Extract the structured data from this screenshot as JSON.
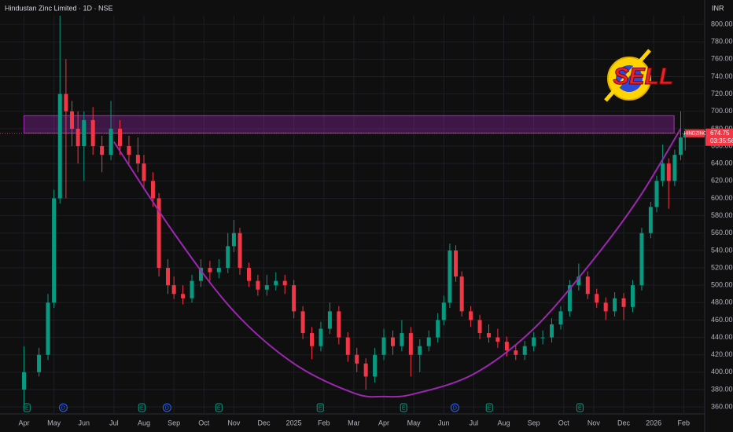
{
  "chart_data": {
    "type": "candlestick",
    "title": "Hindustan Zinc Limited · 1D · NSE",
    "currency": "INR",
    "symbol": "HINDZINC",
    "last_price": 674.75,
    "last_price_label": "674.75",
    "countdown": "03:35:56",
    "badge": "SELL",
    "up_color": "#089981",
    "down_color": "#f23645",
    "ylim": [
      352,
      810
    ],
    "yticks": [
      {
        "value": 360,
        "label": "360.00"
      },
      {
        "value": 380,
        "label": "380.00"
      },
      {
        "value": 400,
        "label": "400.00"
      },
      {
        "value": 420,
        "label": "420.00"
      },
      {
        "value": 440,
        "label": "440.00"
      },
      {
        "value": 460,
        "label": "460.00"
      },
      {
        "value": 480,
        "label": "480.00"
      },
      {
        "value": 500,
        "label": "500.00"
      },
      {
        "value": 520,
        "label": "520.00"
      },
      {
        "value": 540,
        "label": "540.00"
      },
      {
        "value": 560,
        "label": "560.00"
      },
      {
        "value": 580,
        "label": "580.00"
      },
      {
        "value": 600,
        "label": "600.00"
      },
      {
        "value": 620,
        "label": "620.00"
      },
      {
        "value": 640,
        "label": "640.00"
      },
      {
        "value": 660,
        "label": "660.00"
      },
      {
        "value": 680,
        "label": "680.00"
      },
      {
        "value": 700,
        "label": "700.00"
      },
      {
        "value": 720,
        "label": "720.00"
      },
      {
        "value": 740,
        "label": "740.00"
      },
      {
        "value": 760,
        "label": "760.00"
      },
      {
        "value": 780,
        "label": "780.00"
      },
      {
        "value": 800,
        "label": "800.00"
      }
    ],
    "xlim": [
      -0.8,
      22.7
    ],
    "xticks": [
      {
        "value": 0,
        "label": "Apr"
      },
      {
        "value": 1,
        "label": "May"
      },
      {
        "value": 2,
        "label": "Jun"
      },
      {
        "value": 3,
        "label": "Jul"
      },
      {
        "value": 4,
        "label": "Aug"
      },
      {
        "value": 5,
        "label": "Sep"
      },
      {
        "value": 6,
        "label": "Oct"
      },
      {
        "value": 7,
        "label": "Nov"
      },
      {
        "value": 8,
        "label": "Dec"
      },
      {
        "value": 9,
        "label": "2025"
      },
      {
        "value": 10,
        "label": "Feb"
      },
      {
        "value": 11,
        "label": "Mar"
      },
      {
        "value": 12,
        "label": "Apr"
      },
      {
        "value": 13,
        "label": "May"
      },
      {
        "value": 14,
        "label": "Jun"
      },
      {
        "value": 15,
        "label": "Jul"
      },
      {
        "value": 16,
        "label": "Aug"
      },
      {
        "value": 17,
        "label": "Sep"
      },
      {
        "value": 18,
        "label": "Oct"
      },
      {
        "value": 19,
        "label": "Nov"
      },
      {
        "value": 20,
        "label": "Dec"
      },
      {
        "value": 21,
        "label": "2026"
      },
      {
        "value": 22,
        "label": "Feb"
      }
    ],
    "candles": [
      {
        "x": 0,
        "open": 380,
        "high": 430,
        "low": 358,
        "close": 400
      },
      {
        "x": 0.5,
        "open": 400,
        "high": 428,
        "low": 395,
        "close": 420
      },
      {
        "x": 0.8,
        "open": 420,
        "high": 490,
        "low": 414,
        "close": 480
      },
      {
        "x": 1.0,
        "open": 480,
        "high": 610,
        "low": 474,
        "close": 600
      },
      {
        "x": 1.2,
        "open": 600,
        "high": 810,
        "low": 594,
        "close": 720
      },
      {
        "x": 1.4,
        "open": 720,
        "high": 760,
        "low": 600,
        "close": 700
      },
      {
        "x": 1.6,
        "open": 700,
        "high": 712,
        "low": 660,
        "close": 680
      },
      {
        "x": 1.8,
        "open": 680,
        "high": 700,
        "low": 640,
        "close": 660
      },
      {
        "x": 2.0,
        "open": 660,
        "high": 700,
        "low": 620,
        "close": 690
      },
      {
        "x": 2.3,
        "open": 690,
        "high": 705,
        "low": 650,
        "close": 660
      },
      {
        "x": 2.6,
        "open": 660,
        "high": 672,
        "low": 630,
        "close": 650
      },
      {
        "x": 2.9,
        "open": 650,
        "high": 712,
        "low": 644,
        "close": 680
      },
      {
        "x": 3.2,
        "open": 680,
        "high": 690,
        "low": 650,
        "close": 660
      },
      {
        "x": 3.5,
        "open": 660,
        "high": 672,
        "low": 640,
        "close": 650
      },
      {
        "x": 3.8,
        "open": 650,
        "high": 670,
        "low": 630,
        "close": 640
      },
      {
        "x": 4.0,
        "open": 640,
        "high": 650,
        "low": 610,
        "close": 620
      },
      {
        "x": 4.3,
        "open": 620,
        "high": 630,
        "low": 590,
        "close": 600
      },
      {
        "x": 4.5,
        "open": 600,
        "high": 606,
        "low": 510,
        "close": 520
      },
      {
        "x": 4.8,
        "open": 520,
        "high": 530,
        "low": 490,
        "close": 500
      },
      {
        "x": 5.0,
        "open": 500,
        "high": 510,
        "low": 484,
        "close": 490
      },
      {
        "x": 5.3,
        "open": 490,
        "high": 500,
        "low": 478,
        "close": 485
      },
      {
        "x": 5.6,
        "open": 485,
        "high": 512,
        "low": 480,
        "close": 505
      },
      {
        "x": 5.9,
        "open": 505,
        "high": 530,
        "low": 498,
        "close": 520
      },
      {
        "x": 6.2,
        "open": 520,
        "high": 528,
        "low": 505,
        "close": 515
      },
      {
        "x": 6.5,
        "open": 515,
        "high": 530,
        "low": 508,
        "close": 520
      },
      {
        "x": 6.8,
        "open": 520,
        "high": 560,
        "low": 514,
        "close": 545
      },
      {
        "x": 7.0,
        "open": 545,
        "high": 575,
        "low": 538,
        "close": 560
      },
      {
        "x": 7.2,
        "open": 560,
        "high": 566,
        "low": 512,
        "close": 520
      },
      {
        "x": 7.5,
        "open": 520,
        "high": 526,
        "low": 498,
        "close": 505
      },
      {
        "x": 7.8,
        "open": 505,
        "high": 512,
        "low": 488,
        "close": 495
      },
      {
        "x": 8.1,
        "open": 495,
        "high": 512,
        "low": 488,
        "close": 500
      },
      {
        "x": 8.4,
        "open": 500,
        "high": 515,
        "low": 494,
        "close": 505
      },
      {
        "x": 8.7,
        "open": 505,
        "high": 512,
        "low": 490,
        "close": 500
      },
      {
        "x": 9.0,
        "open": 500,
        "high": 506,
        "low": 462,
        "close": 470
      },
      {
        "x": 9.3,
        "open": 470,
        "high": 476,
        "low": 438,
        "close": 445
      },
      {
        "x": 9.6,
        "open": 445,
        "high": 452,
        "low": 415,
        "close": 430
      },
      {
        "x": 9.9,
        "open": 430,
        "high": 458,
        "low": 424,
        "close": 450
      },
      {
        "x": 10.2,
        "open": 450,
        "high": 480,
        "low": 444,
        "close": 470
      },
      {
        "x": 10.5,
        "open": 470,
        "high": 476,
        "low": 432,
        "close": 440
      },
      {
        "x": 10.8,
        "open": 440,
        "high": 446,
        "low": 412,
        "close": 420
      },
      {
        "x": 11.1,
        "open": 420,
        "high": 428,
        "low": 400,
        "close": 410
      },
      {
        "x": 11.4,
        "open": 410,
        "high": 416,
        "low": 380,
        "close": 395
      },
      {
        "x": 11.7,
        "open": 395,
        "high": 428,
        "low": 388,
        "close": 420
      },
      {
        "x": 12.0,
        "open": 420,
        "high": 450,
        "low": 414,
        "close": 440
      },
      {
        "x": 12.3,
        "open": 440,
        "high": 448,
        "low": 420,
        "close": 430
      },
      {
        "x": 12.6,
        "open": 430,
        "high": 460,
        "low": 424,
        "close": 445
      },
      {
        "x": 12.9,
        "open": 445,
        "high": 452,
        "low": 395,
        "close": 420
      },
      {
        "x": 13.2,
        "open": 420,
        "high": 438,
        "low": 400,
        "close": 430
      },
      {
        "x": 13.5,
        "open": 430,
        "high": 448,
        "low": 424,
        "close": 440
      },
      {
        "x": 13.8,
        "open": 440,
        "high": 468,
        "low": 434,
        "close": 460
      },
      {
        "x": 14.0,
        "open": 460,
        "high": 488,
        "low": 454,
        "close": 480
      },
      {
        "x": 14.2,
        "open": 480,
        "high": 548,
        "low": 474,
        "close": 540
      },
      {
        "x": 14.4,
        "open": 540,
        "high": 546,
        "low": 504,
        "close": 510
      },
      {
        "x": 14.6,
        "open": 510,
        "high": 516,
        "low": 464,
        "close": 470
      },
      {
        "x": 14.9,
        "open": 470,
        "high": 476,
        "low": 452,
        "close": 460
      },
      {
        "x": 15.2,
        "open": 460,
        "high": 466,
        "low": 438,
        "close": 445
      },
      {
        "x": 15.5,
        "open": 445,
        "high": 455,
        "low": 434,
        "close": 440
      },
      {
        "x": 15.8,
        "open": 440,
        "high": 450,
        "low": 428,
        "close": 435
      },
      {
        "x": 16.1,
        "open": 435,
        "high": 441,
        "low": 418,
        "close": 425
      },
      {
        "x": 16.4,
        "open": 425,
        "high": 432,
        "low": 414,
        "close": 420
      },
      {
        "x": 16.7,
        "open": 420,
        "high": 436,
        "low": 414,
        "close": 430
      },
      {
        "x": 17.0,
        "open": 430,
        "high": 446,
        "low": 424,
        "close": 440
      },
      {
        "x": 17.3,
        "open": 440,
        "high": 448,
        "low": 432,
        "close": 440
      },
      {
        "x": 17.6,
        "open": 440,
        "high": 462,
        "low": 434,
        "close": 455
      },
      {
        "x": 17.9,
        "open": 455,
        "high": 476,
        "low": 449,
        "close": 470
      },
      {
        "x": 18.2,
        "open": 470,
        "high": 506,
        "low": 464,
        "close": 500
      },
      {
        "x": 18.5,
        "open": 500,
        "high": 525,
        "low": 494,
        "close": 510
      },
      {
        "x": 18.8,
        "open": 510,
        "high": 516,
        "low": 484,
        "close": 490
      },
      {
        "x": 19.1,
        "open": 490,
        "high": 496,
        "low": 474,
        "close": 480
      },
      {
        "x": 19.4,
        "open": 480,
        "high": 486,
        "low": 460,
        "close": 470
      },
      {
        "x": 19.7,
        "open": 470,
        "high": 492,
        "low": 464,
        "close": 485
      },
      {
        "x": 20.0,
        "open": 485,
        "high": 491,
        "low": 460,
        "close": 475
      },
      {
        "x": 20.3,
        "open": 475,
        "high": 506,
        "low": 469,
        "close": 500
      },
      {
        "x": 20.6,
        "open": 500,
        "high": 566,
        "low": 494,
        "close": 560
      },
      {
        "x": 20.9,
        "open": 560,
        "high": 596,
        "low": 554,
        "close": 590
      },
      {
        "x": 21.1,
        "open": 590,
        "high": 626,
        "low": 584,
        "close": 620
      },
      {
        "x": 21.3,
        "open": 620,
        "high": 662,
        "low": 614,
        "close": 640
      },
      {
        "x": 21.5,
        "open": 640,
        "high": 646,
        "low": 588,
        "close": 620
      },
      {
        "x": 21.7,
        "open": 620,
        "high": 656,
        "low": 614,
        "close": 650
      },
      {
        "x": 21.9,
        "open": 650,
        "high": 700,
        "low": 644,
        "close": 670
      },
      {
        "x": 22.05,
        "open": 670,
        "high": 680,
        "low": 655,
        "close": 674.75
      }
    ],
    "zone": {
      "x": [
        0,
        21.68
      ],
      "y": [
        675,
        695
      ],
      "color": "#9c27b0"
    },
    "cup_curve": {
      "color": "#9c27b0",
      "x": [
        3,
        5,
        7,
        9,
        11,
        12,
        13,
        15,
        17,
        19,
        20.5,
        21.9
      ],
      "y": [
        665,
        560,
        470,
        410,
        376,
        372,
        375,
        398,
        450,
        530,
        600,
        680
      ]
    },
    "events": [
      {
        "x": 0.1,
        "label": "E"
      },
      {
        "x": 1.31,
        "label": "D"
      },
      {
        "x": 3.93,
        "label": "E"
      },
      {
        "x": 4.77,
        "label": "D"
      },
      {
        "x": 6.5,
        "label": "E"
      },
      {
        "x": 9.88,
        "label": "E"
      },
      {
        "x": 12.66,
        "label": "E"
      },
      {
        "x": 14.37,
        "label": "D"
      },
      {
        "x": 15.52,
        "label": "E"
      },
      {
        "x": 18.54,
        "label": "E"
      }
    ]
  }
}
